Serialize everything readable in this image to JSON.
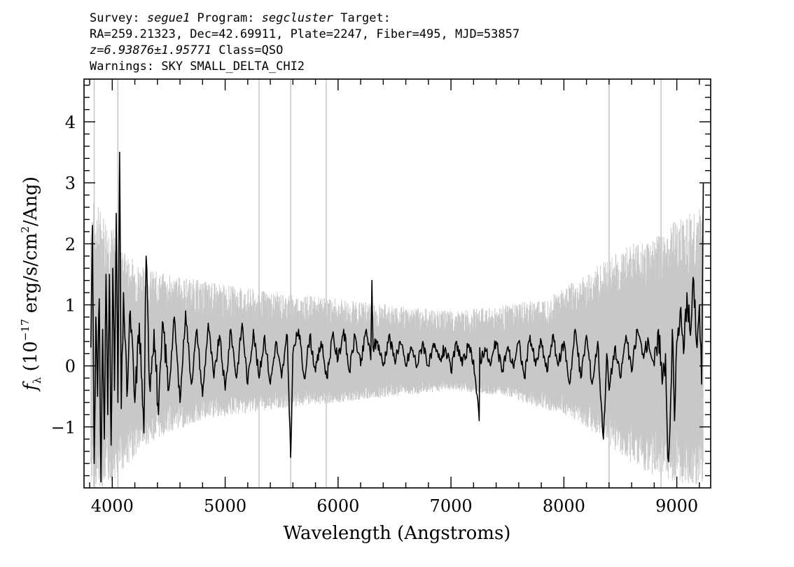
{
  "header": {
    "line1": {
      "survey_label": "Survey: ",
      "survey_value": "segue1",
      "program_label": " Program: ",
      "program_value": "segcluster",
      "target_label": " Target:"
    },
    "line2": "RA=259.21323, Dec=42.69911, Plate=2247, Fiber=495, MJD=53857",
    "line3": {
      "z_value": "z=6.93876±1.95771",
      "class_text": " Class=QSO"
    },
    "line4": "Warnings: SKY SMALL_DELTA_CHI2"
  },
  "colors": {
    "flux": "#000000",
    "error_band": "#c8c8c8",
    "frame": "#000000"
  },
  "chart_data": {
    "type": "line",
    "title": "",
    "xlabel": "Wavelength (Angstroms)",
    "ylabel_prefix": "f",
    "ylabel_subscript": "λ",
    "ylabel_unit_open": " (10",
    "ylabel_exp": "−17",
    "ylabel_mid": " erg/s/cm",
    "ylabel_exp2": "2",
    "ylabel_close": "/Ang)",
    "xlim": [
      3750,
      9300
    ],
    "ylim": [
      -2.0,
      4.7
    ],
    "x_ticks": [
      4000,
      5000,
      6000,
      7000,
      8000,
      9000
    ],
    "x_tick_labels": [
      "4000",
      "5000",
      "6000",
      "7000",
      "8000",
      "9000"
    ],
    "y_ticks": [
      -1,
      0,
      1,
      2,
      3,
      4
    ],
    "y_tick_labels": [
      "−1",
      "0",
      "1",
      "2",
      "3",
      "4"
    ],
    "x_minor_step": 200,
    "y_minor_step": 0.2,
    "grid": false,
    "series": [
      {
        "values_description": "observed flux (black)",
        "x": [
          3810,
          3825,
          3840,
          3855,
          3870,
          3885,
          3900,
          3915,
          3930,
          3945,
          3960,
          3975,
          3990,
          4005,
          4020,
          4035,
          4050,
          4065,
          4080,
          4100,
          4130,
          4160,
          4200,
          4240,
          4280,
          4300,
          4330,
          4370,
          4410,
          4450,
          4500,
          4550,
          4600,
          4650,
          4700,
          4750,
          4800,
          4850,
          4900,
          4950,
          5000,
          5050,
          5100,
          5150,
          5200,
          5250,
          5300,
          5350,
          5400,
          5450,
          5500,
          5550,
          5580,
          5600,
          5650,
          5700,
          5750,
          5800,
          5850,
          5900,
          5950,
          6000,
          6050,
          6100,
          6150,
          6200,
          6250,
          6290,
          6300,
          6310,
          6350,
          6400,
          6450,
          6500,
          6550,
          6600,
          6650,
          6700,
          6750,
          6800,
          6850,
          6900,
          6950,
          7000,
          7050,
          7100,
          7150,
          7200,
          7250,
          7255,
          7260,
          7300,
          7350,
          7400,
          7450,
          7500,
          7550,
          7600,
          7650,
          7700,
          7750,
          7800,
          7850,
          7900,
          7950,
          8000,
          8050,
          8100,
          8150,
          8200,
          8250,
          8300,
          8330,
          8350,
          8380,
          8400,
          8450,
          8500,
          8550,
          8600,
          8650,
          8700,
          8750,
          8800,
          8850,
          8870,
          8900,
          8920,
          8940,
          8960,
          8980,
          9000,
          9030,
          9060,
          9090,
          9120,
          9150,
          9180,
          9200,
          9220,
          9235
        ],
        "y": [
          0.3,
          2.3,
          -1.6,
          0.8,
          -0.5,
          1.1,
          -1.9,
          0.6,
          -1.2,
          1.5,
          -0.8,
          1.5,
          -1.3,
          1.6,
          -0.4,
          2.5,
          -0.6,
          3.5,
          -0.7,
          1.2,
          -0.5,
          0.9,
          -0.6,
          0.7,
          -1.1,
          1.8,
          -0.3,
          0.6,
          -0.8,
          0.7,
          -0.4,
          0.8,
          -0.6,
          0.9,
          -0.3,
          0.6,
          -0.5,
          0.7,
          -0.2,
          0.5,
          -0.4,
          0.6,
          -0.2,
          0.7,
          -0.3,
          0.6,
          -0.2,
          0.5,
          -0.3,
          0.4,
          -0.2,
          0.5,
          -1.5,
          0.2,
          0.6,
          -0.2,
          0.5,
          -0.1,
          0.4,
          -0.2,
          0.5,
          0.1,
          0.6,
          -0.1,
          0.5,
          0.0,
          0.6,
          0.1,
          1.4,
          0.3,
          0.4,
          0.0,
          0.5,
          0.1,
          0.4,
          0.0,
          0.3,
          0.0,
          0.4,
          0.0,
          0.3,
          0.1,
          0.3,
          -0.1,
          0.4,
          0.0,
          0.3,
          0.1,
          -0.9,
          0.3,
          0.1,
          0.3,
          0.0,
          0.4,
          -0.1,
          0.3,
          0.0,
          0.4,
          -0.2,
          0.5,
          0.0,
          0.4,
          -0.1,
          0.5,
          0.0,
          0.4,
          -0.3,
          0.6,
          -0.2,
          0.5,
          -0.3,
          0.4,
          -0.6,
          -1.2,
          0.2,
          -0.4,
          0.3,
          -0.2,
          0.5,
          -0.1,
          0.6,
          0.2,
          0.4,
          0.0,
          0.5,
          -0.3,
          0.2,
          -1.5,
          -1.0,
          0.6,
          -0.9,
          0.4,
          0.9,
          0.2,
          1.2,
          0.5,
          1.4,
          0.3,
          1.0,
          -0.3,
          3.0
        ]
      },
      {
        "values_description": "flux uncertainty envelope (grey), upper/lower",
        "x": [
          3810,
          3900,
          4000,
          4100,
          4300,
          4500,
          4800,
          5100,
          5500,
          6000,
          6500,
          7000,
          7500,
          7800,
          8000,
          8200,
          8400,
          8600,
          8800,
          9000,
          9235
        ],
        "upper": [
          2.8,
          2.6,
          2.3,
          1.9,
          1.6,
          1.5,
          1.4,
          1.3,
          1.2,
          1.1,
          1.0,
          0.9,
          1.0,
          1.1,
          1.3,
          1.5,
          1.8,
          2.0,
          2.1,
          2.4,
          2.6
        ],
        "lower": [
          -2.0,
          -2.0,
          -1.9,
          -1.7,
          -1.3,
          -1.1,
          -0.9,
          -0.8,
          -0.7,
          -0.6,
          -0.5,
          -0.4,
          -0.5,
          -0.7,
          -0.8,
          -1.0,
          -1.3,
          -1.6,
          -1.8,
          -1.9,
          -2.0
        ]
      }
    ],
    "sky_lines": [
      3840,
      4050,
      5300,
      5580,
      5895,
      8400,
      8860
    ]
  }
}
